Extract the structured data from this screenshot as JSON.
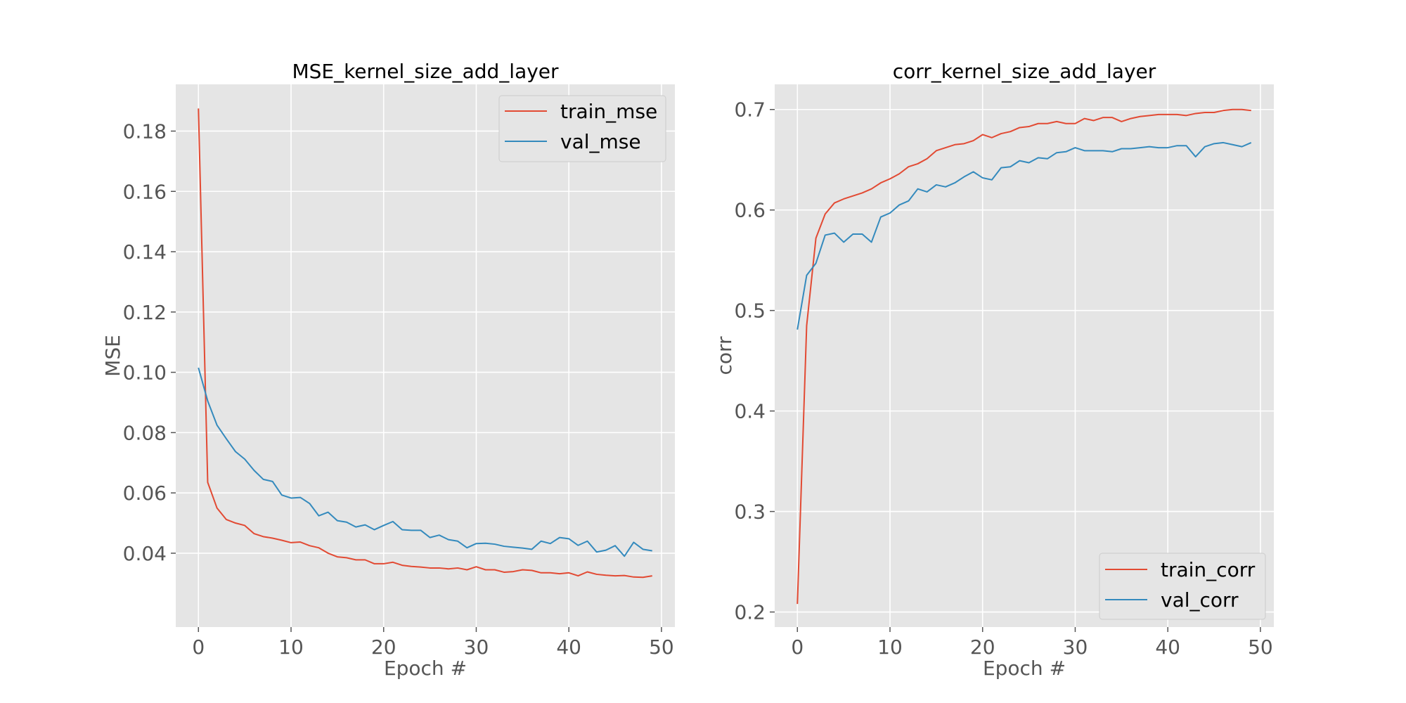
{
  "chart_data": [
    {
      "type": "line",
      "title": "MSE_kernel_size_add_layer",
      "xlabel": "Epoch #",
      "ylabel": "MSE",
      "xlim": [
        -2.45,
        51.45
      ],
      "ylim": [
        0.0155,
        0.1955
      ],
      "xticks": [
        0,
        10,
        20,
        30,
        40,
        50
      ],
      "yticks": [
        0.04,
        0.06,
        0.08,
        0.1,
        0.12,
        0.14,
        0.16,
        0.18
      ],
      "ytick_labels": [
        "0.04",
        "0.06",
        "0.08",
        "0.10",
        "0.12",
        "0.14",
        "0.16",
        "0.18"
      ],
      "grid": true,
      "legend_position": "top-right",
      "x": [
        0,
        1,
        2,
        3,
        4,
        5,
        6,
        7,
        8,
        9,
        10,
        11,
        12,
        13,
        14,
        15,
        16,
        17,
        18,
        19,
        20,
        21,
        22,
        23,
        24,
        25,
        26,
        27,
        28,
        29,
        30,
        31,
        32,
        33,
        34,
        35,
        36,
        37,
        38,
        39,
        40,
        41,
        42,
        43,
        44,
        45,
        46,
        47,
        48,
        49
      ],
      "series": [
        {
          "name": "train_mse",
          "color": "#E24A33",
          "values": [
            0.1875,
            0.0635,
            0.055,
            0.0512,
            0.05,
            0.0492,
            0.0465,
            0.0455,
            0.045,
            0.0443,
            0.0435,
            0.0437,
            0.0425,
            0.0418,
            0.04,
            0.0388,
            0.0385,
            0.0378,
            0.0378,
            0.0365,
            0.0365,
            0.037,
            0.036,
            0.0356,
            0.0354,
            0.0351,
            0.0351,
            0.0348,
            0.0351,
            0.0345,
            0.0355,
            0.0345,
            0.0345,
            0.0337,
            0.0339,
            0.0345,
            0.0343,
            0.0335,
            0.0335,
            0.0332,
            0.0335,
            0.0325,
            0.0338,
            0.033,
            0.0327,
            0.0325,
            0.0326,
            0.0321,
            0.032,
            0.0325
          ]
        },
        {
          "name": "val_mse",
          "color": "#348ABD",
          "values": [
            0.1015,
            0.0905,
            0.0825,
            0.078,
            0.0737,
            0.0712,
            0.0675,
            0.0645,
            0.0638,
            0.0593,
            0.0583,
            0.0585,
            0.0565,
            0.0524,
            0.0536,
            0.0508,
            0.0503,
            0.0487,
            0.0494,
            0.0478,
            0.0492,
            0.0505,
            0.0478,
            0.0476,
            0.0476,
            0.0452,
            0.046,
            0.0445,
            0.044,
            0.0418,
            0.0432,
            0.0433,
            0.043,
            0.0423,
            0.042,
            0.0417,
            0.0413,
            0.044,
            0.0432,
            0.0452,
            0.0448,
            0.0426,
            0.044,
            0.0404,
            0.041,
            0.0425,
            0.039,
            0.0436,
            0.0413,
            0.0408
          ]
        }
      ]
    },
    {
      "type": "line",
      "title": "corr_kernel_size_add_layer",
      "xlabel": "Epoch #",
      "ylabel": "corr",
      "xlim": [
        -2.45,
        51.45
      ],
      "ylim": [
        0.185,
        0.725
      ],
      "xticks": [
        0,
        10,
        20,
        30,
        40,
        50
      ],
      "yticks": [
        0.2,
        0.3,
        0.4,
        0.5,
        0.6,
        0.7
      ],
      "ytick_labels": [
        "0.2",
        "0.3",
        "0.4",
        "0.5",
        "0.6",
        "0.7"
      ],
      "grid": true,
      "legend_position": "bottom-right",
      "x": [
        0,
        1,
        2,
        3,
        4,
        5,
        6,
        7,
        8,
        9,
        10,
        11,
        12,
        13,
        14,
        15,
        16,
        17,
        18,
        19,
        20,
        21,
        22,
        23,
        24,
        25,
        26,
        27,
        28,
        29,
        30,
        31,
        32,
        33,
        34,
        35,
        36,
        37,
        38,
        39,
        40,
        41,
        42,
        43,
        44,
        45,
        46,
        47,
        48,
        49
      ],
      "series": [
        {
          "name": "train_corr",
          "color": "#E24A33",
          "values": [
            0.208,
            0.485,
            0.572,
            0.596,
            0.607,
            0.611,
            0.614,
            0.617,
            0.621,
            0.627,
            0.631,
            0.636,
            0.643,
            0.646,
            0.651,
            0.659,
            0.662,
            0.665,
            0.666,
            0.669,
            0.675,
            0.672,
            0.676,
            0.678,
            0.682,
            0.683,
            0.686,
            0.686,
            0.688,
            0.686,
            0.686,
            0.691,
            0.689,
            0.692,
            0.692,
            0.688,
            0.691,
            0.693,
            0.694,
            0.695,
            0.695,
            0.695,
            0.694,
            0.696,
            0.697,
            0.697,
            0.699,
            0.7,
            0.7,
            0.699
          ]
        },
        {
          "name": "val_corr",
          "color": "#348ABD",
          "values": [
            0.481,
            0.535,
            0.547,
            0.575,
            0.577,
            0.568,
            0.576,
            0.576,
            0.568,
            0.593,
            0.597,
            0.605,
            0.609,
            0.621,
            0.618,
            0.625,
            0.623,
            0.627,
            0.633,
            0.638,
            0.632,
            0.63,
            0.642,
            0.643,
            0.649,
            0.647,
            0.652,
            0.651,
            0.657,
            0.658,
            0.662,
            0.659,
            0.659,
            0.659,
            0.658,
            0.661,
            0.661,
            0.662,
            0.663,
            0.662,
            0.662,
            0.664,
            0.664,
            0.653,
            0.663,
            0.666,
            0.667,
            0.665,
            0.663,
            0.667
          ]
        }
      ]
    }
  ]
}
